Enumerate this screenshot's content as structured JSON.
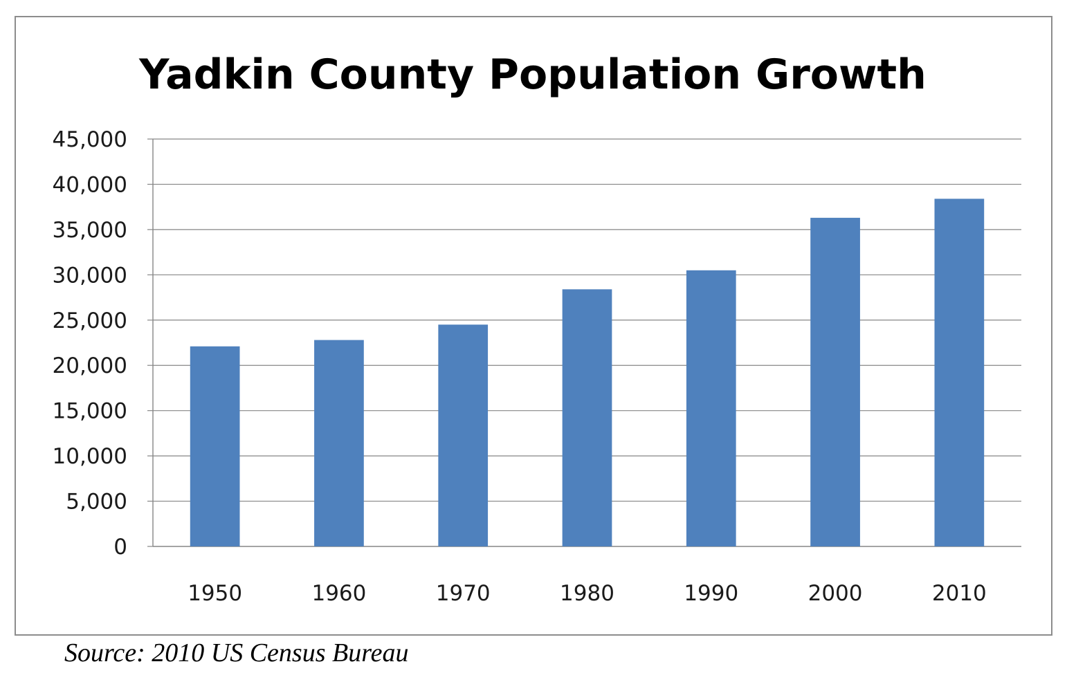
{
  "chart_data": {
    "type": "bar",
    "title": "Yadkin County Population Growth",
    "categories": [
      "1950",
      "1960",
      "1970",
      "1980",
      "1990",
      "2000",
      "2010"
    ],
    "values": [
      22100,
      22800,
      24500,
      28400,
      30500,
      36300,
      38400
    ],
    "yticks": [
      "0",
      "5,000",
      "10,000",
      "15,000",
      "20,000",
      "25,000",
      "30,000",
      "35,000",
      "40,000",
      "45,000"
    ],
    "ylim": [
      0,
      45000
    ],
    "ytick_step": 5000,
    "xlabel": "",
    "ylabel": "",
    "grid": true,
    "legend": "none",
    "bar_color": "#4f81bd",
    "grid_color": "#868686"
  },
  "source": "Source: 2010 US Census Bureau"
}
